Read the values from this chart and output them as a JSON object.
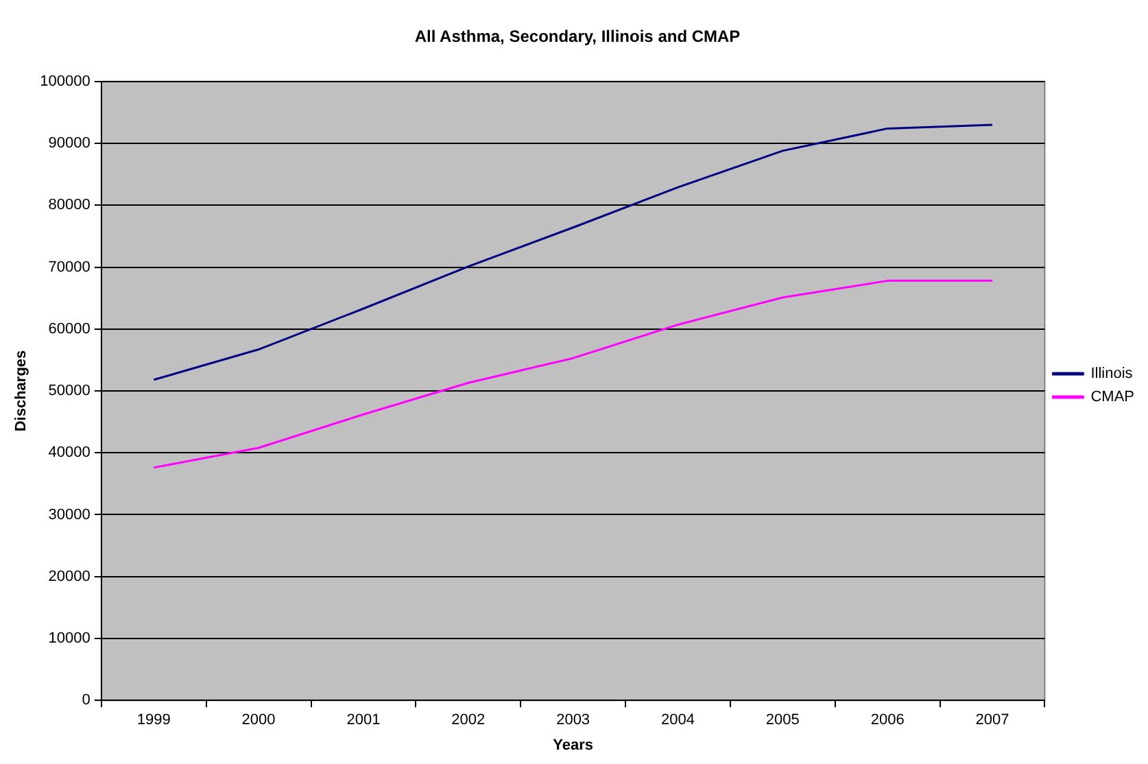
{
  "chart_data": {
    "type": "line",
    "title": "All Asthma, Secondary, Illinois and CMAP",
    "xlabel": "Years",
    "ylabel": "Discharges",
    "categories": [
      "1999",
      "2000",
      "2001",
      "2002",
      "2003",
      "2004",
      "2005",
      "2006",
      "2007"
    ],
    "series": [
      {
        "name": "Illinois",
        "color": "#000080",
        "values": [
          51800,
          56700,
          63300,
          70100,
          76400,
          82900,
          88800,
          92400,
          93000
        ]
      },
      {
        "name": "CMAP",
        "color": "#ff00ff",
        "values": [
          37600,
          40800,
          46200,
          51300,
          55300,
          60700,
          65100,
          67800,
          67800
        ]
      }
    ],
    "ylim": [
      0,
      100000
    ],
    "yticks": [
      0,
      10000,
      20000,
      30000,
      40000,
      50000,
      60000,
      70000,
      80000,
      90000,
      100000
    ],
    "grid": "y",
    "legend": "right",
    "marker": "none",
    "line_style": "solid"
  }
}
